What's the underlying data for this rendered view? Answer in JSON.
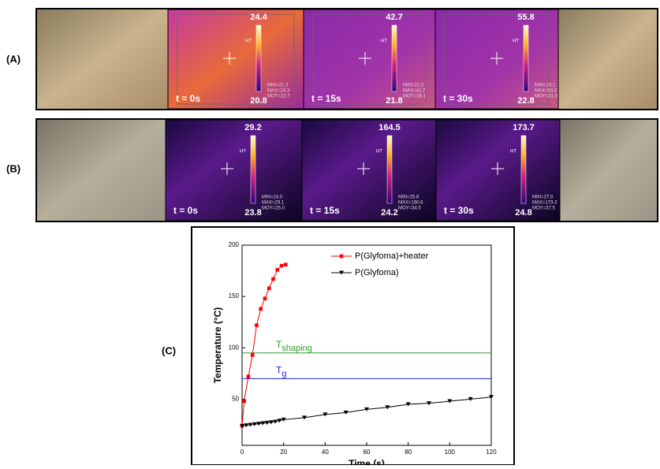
{
  "panel_labels": [
    "(A)",
    "(B)",
    "(C)"
  ],
  "hotspot_label": "HT",
  "rows": [
    {
      "frames": [
        {
          "time": "t = 0s",
          "max": 24.4,
          "min": 20.8,
          "stats": [
            "MIN=21.3",
            "MAX=24.3",
            "MOY=22.7"
          ]
        },
        {
          "time": "t = 15s",
          "max": 42.7,
          "min": 21.8,
          "stats": [
            "MIN=22.0",
            "MAX=41.7",
            "MOY=28.1"
          ]
        },
        {
          "time": "t = 30s",
          "max": 55.8,
          "min": 22.8,
          "stats": [
            "MIN=24.1",
            "MAX=54.3",
            "MOY=31.3"
          ]
        }
      ]
    },
    {
      "frames": [
        {
          "time": "t = 0s",
          "max": 29.2,
          "min": 23.8,
          "stats": [
            "MIN=24.0",
            "MAX=29.1",
            "MOY=25.0"
          ]
        },
        {
          "time": "t = 15s",
          "max": 164.5,
          "min": 24.2,
          "stats": [
            "MIN=25.8",
            "MAX=160.6",
            "MOY=34.5"
          ]
        },
        {
          "time": "t = 30s",
          "max": 173.7,
          "min": 24.8,
          "stats": [
            "MIN=27.0",
            "MAX=173.3",
            "MOY=37.5"
          ]
        }
      ]
    }
  ],
  "chart_data": {
    "type": "line",
    "xlabel": "Time (s)",
    "ylabel": "Temperature (°C)",
    "xlim": [
      0,
      120
    ],
    "xticks": [
      0,
      20,
      40,
      60,
      80,
      100,
      120
    ],
    "ylim": [
      5,
      200
    ],
    "yticks": [
      50,
      100,
      150,
      200
    ],
    "legend": "upper right",
    "series": [
      {
        "name": "P(Glyfoma)+heater",
        "color": "#ff0000",
        "marker": "square",
        "x": [
          0,
          1,
          3,
          5,
          7,
          9,
          11,
          13,
          15,
          17,
          19,
          21
        ],
        "values": [
          24,
          48,
          72,
          93,
          122,
          138,
          148,
          158,
          167,
          176,
          180,
          181
        ]
      },
      {
        "name": "P(Glyfoma)",
        "color": "#000000",
        "marker": "triangle-down",
        "x": [
          0,
          2,
          4,
          6,
          8,
          10,
          12,
          14,
          16,
          18,
          20,
          30,
          40,
          50,
          60,
          70,
          80,
          90,
          100,
          110,
          120
        ],
        "values": [
          24,
          24.5,
          25,
          25.5,
          26,
          26.5,
          27,
          27.5,
          28,
          29,
          30,
          32,
          35,
          37,
          40,
          42,
          45,
          46,
          48,
          50,
          52
        ]
      }
    ],
    "annotations": [
      {
        "label": "T",
        "subscript": "shaping",
        "value": 95,
        "color": "#2e9b2e"
      },
      {
        "label": "T",
        "subscript": "g",
        "value": 70,
        "color": "#2222dd"
      }
    ]
  }
}
